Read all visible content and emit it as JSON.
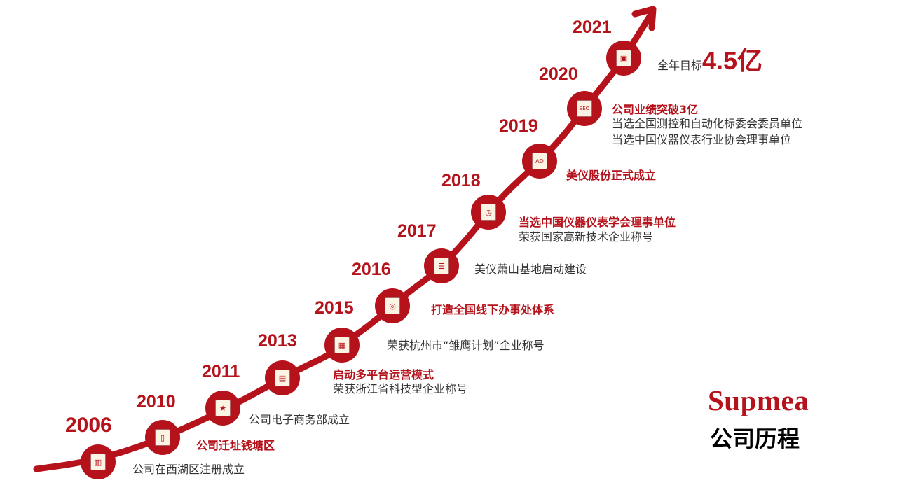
{
  "brand": {
    "logo_text": "Supmea",
    "title": "公司历程",
    "accent": "#b5121b"
  },
  "milestones": [
    {
      "year": "2006",
      "icon": "building-icon",
      "lines": [
        "公司在西湖区注册成立"
      ]
    },
    {
      "year": "2010",
      "icon": "notebook-icon",
      "lines": [
        "公司迁址钱塘区"
      ]
    },
    {
      "year": "2011",
      "icon": "star-document-icon",
      "lines": [
        "公司电子商务部成立"
      ]
    },
    {
      "year": "2013",
      "icon": "dashboard-icon",
      "lines": [
        "启动多平台运营模式",
        "荣获浙江省科技型企业称号"
      ]
    },
    {
      "year": "2015",
      "icon": "chart-document-icon",
      "lines": [
        "荣获杭州市“雏鹰计划”企业称号"
      ]
    },
    {
      "year": "2016",
      "icon": "monitor-icon",
      "lines": [
        "打造全国线下办事处体系"
      ]
    },
    {
      "year": "2017",
      "icon": "newspaper-icon",
      "lines": [
        "美仪萧山基地启动建设"
      ]
    },
    {
      "year": "2018",
      "icon": "control-panel-icon",
      "lines": [
        "当选中国仪器仪表学会理事单位",
        "荣获国家高新技术企业称号"
      ]
    },
    {
      "year": "2019",
      "icon": "ad-board-icon",
      "lines": [
        "美仪股份正式成立"
      ]
    },
    {
      "year": "2020",
      "icon": "seo-board-icon",
      "lines": [
        "公司业绩突破3亿",
        "当选全国测控和自动化标委会委员单位",
        "当选中国仪器仪表行业协会理事单位"
      ]
    },
    {
      "year": "2021",
      "icon": "office-building-icon",
      "lines": [
        "全年目标",
        "4.5亿"
      ]
    }
  ]
}
